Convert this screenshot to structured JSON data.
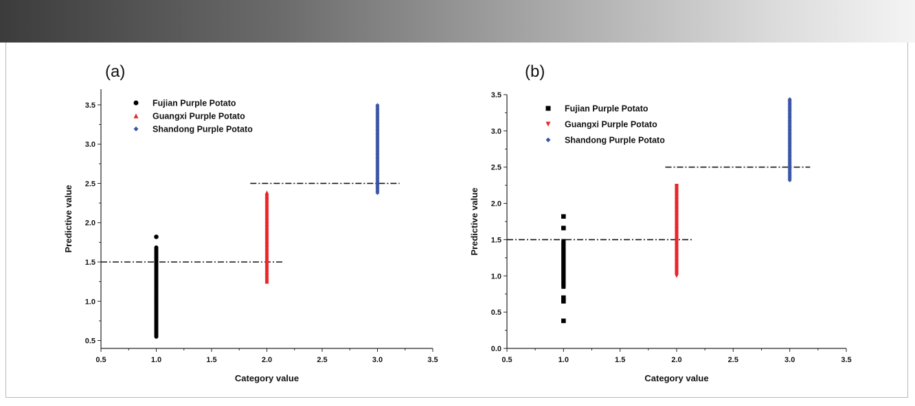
{
  "chart_data": [
    {
      "type": "scatter",
      "panel_label": "(a)",
      "xlabel": "Category value",
      "ylabel": "Predictive value",
      "xlim": [
        0.5,
        3.5
      ],
      "ylim": [
        0.4,
        3.7
      ],
      "x_ticks": [
        "0.5",
        "1.0",
        "1.5",
        "2.0",
        "2.5",
        "3.0",
        "3.5"
      ],
      "y_ticks": [
        "0.5",
        "1.0",
        "1.5",
        "2.0",
        "2.5",
        "3.0",
        "3.5"
      ],
      "legend_position": "top-left",
      "series": [
        {
          "name": "Fujian Purple Potato",
          "color": "#000000",
          "marker": "circle",
          "x": 1.0,
          "y_min": 0.55,
          "y_max": 1.7,
          "y_outliers": [
            1.82
          ]
        },
        {
          "name": "Guangxi Purple Potato",
          "color": "#e8262a",
          "marker": "triangle",
          "x": 2.0,
          "y_min": 1.25,
          "y_max": 2.4,
          "y_outliers": []
        },
        {
          "name": "Shandong Purple Potato",
          "color": "#3a55a6",
          "marker": "diamond",
          "x": 3.0,
          "y_min": 2.38,
          "y_max": 3.5,
          "y_outliers": []
        }
      ],
      "thresholds": [
        {
          "y": 1.5,
          "x_start": 0.5,
          "x_end": 2.15
        },
        {
          "y": 2.5,
          "x_start": 1.85,
          "x_end": 3.2
        }
      ]
    },
    {
      "type": "scatter",
      "panel_label": "(b)",
      "xlabel": "Category value",
      "ylabel": "Predictive value",
      "xlim": [
        0.5,
        3.5
      ],
      "ylim": [
        0.0,
        3.5
      ],
      "x_ticks": [
        "0.5",
        "1.0",
        "1.5",
        "2.0",
        "2.5",
        "3.0",
        "3.5"
      ],
      "y_ticks": [
        "0.0",
        "0.5",
        "1.0",
        "1.5",
        "2.0",
        "2.5",
        "3.0",
        "3.5"
      ],
      "legend_position": "top-left",
      "series": [
        {
          "name": "Fujian Purple Potato",
          "color": "#000000",
          "marker": "square",
          "x": 1.0,
          "y_min": 0.85,
          "y_max": 1.48,
          "y_outliers": [
            0.38,
            0.65,
            0.7,
            1.66,
            1.82
          ]
        },
        {
          "name": "Guangxi Purple Potato",
          "color": "#e8262a",
          "marker": "triangle-down",
          "x": 2.0,
          "y_min": 1.0,
          "y_max": 2.25,
          "y_outliers": []
        },
        {
          "name": "Shandong Purple Potato",
          "color": "#3a55a6",
          "marker": "diamond",
          "x": 3.0,
          "y_min": 2.32,
          "y_max": 3.45,
          "y_outliers": []
        }
      ],
      "thresholds": [
        {
          "y": 1.5,
          "x_start": 0.5,
          "x_end": 2.15
        },
        {
          "y": 2.5,
          "x_start": 1.9,
          "x_end": 3.18
        }
      ]
    }
  ]
}
